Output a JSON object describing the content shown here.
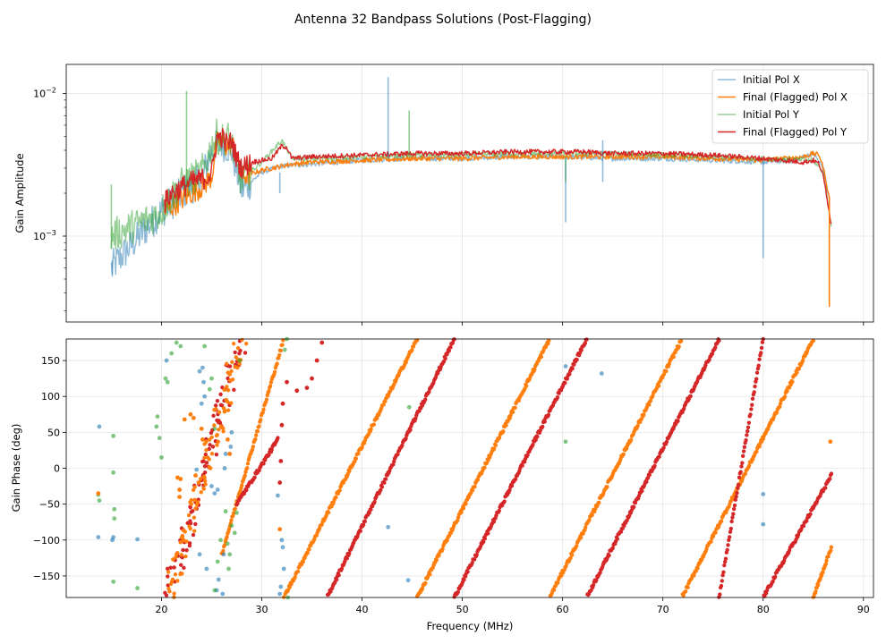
{
  "chart_data": {
    "type": "line",
    "title": "Antenna 32 Bandpass Solutions (Post-Flagging)",
    "x_axis": {
      "label": "Frequency (MHz)",
      "range": [
        10.5,
        91
      ],
      "ticks": [
        20,
        30,
        40,
        50,
        60,
        70,
        80,
        90
      ]
    },
    "panels": [
      {
        "id": "amplitude",
        "ylabel": "Gain Amplitude",
        "yscale": "log",
        "ylim": [
          0.00025,
          0.016
        ],
        "y_ticks": [
          {
            "value": 0.001,
            "label": "10",
            "exp": "−3"
          },
          {
            "value": 0.01,
            "label": "10",
            "exp": "−2"
          }
        ],
        "grid": true,
        "legend_position": "top-right",
        "series": [
          {
            "name": "Initial Pol X",
            "color": "#1f77b4",
            "alpha": 0.5,
            "x": [
              15.0,
              20.0,
              21.0,
              22.0,
              23.0,
              24.0,
              25.0,
              26.0,
              27.0,
              28.0,
              30.0,
              32.0,
              35.0,
              40.0,
              45.0,
              50.0,
              55.0,
              60.0,
              65.0,
              70.0,
              75.0,
              80.0,
              83.0,
              85.0,
              86.0,
              86.6
            ],
            "y": [
              0.0006,
              0.0015,
              0.0017,
              0.002,
              0.0022,
              0.0025,
              0.004,
              0.0045,
              0.004,
              0.0021,
              0.0028,
              0.0031,
              0.0032,
              0.0034,
              0.0035,
              0.0035,
              0.0036,
              0.0036,
              0.0035,
              0.0035,
              0.0034,
              0.0033,
              0.0034,
              0.0038,
              0.003,
              0.0018
            ]
          },
          {
            "name": "Final (Flagged) Pol X",
            "color": "#ff7f0e",
            "alpha": 1,
            "x": [
              20.3,
              21.0,
              22.0,
              23.0,
              24.0,
              25.0,
              25.5,
              26.0,
              26.5,
              27.0,
              27.5,
              28.0,
              30.0,
              32.0,
              33.0,
              35.0,
              40.0,
              45.0,
              50.0,
              55.0,
              60.0,
              65.0,
              70.0,
              75.0,
              80.0,
              82.0,
              84.0,
              85.0,
              85.6,
              86.0,
              86.3,
              86.6
            ],
            "y": [
              0.0015,
              0.0016,
              0.0018,
              0.002,
              0.0022,
              0.0026,
              0.0045,
              0.0048,
              0.0042,
              0.0046,
              0.0035,
              0.0026,
              0.0029,
              0.0031,
              0.0032,
              0.0033,
              0.0034,
              0.0035,
              0.0035,
              0.0036,
              0.0036,
              0.0036,
              0.0036,
              0.0035,
              0.0034,
              0.0035,
              0.0036,
              0.0038,
              0.0037,
              0.003,
              0.0024,
              0.0018
            ]
          },
          {
            "name": "Initial Pol Y",
            "color": "#2ca02c",
            "alpha": 0.5,
            "x": [
              15.0,
              19.5,
              20.0,
              21.0,
              22.0,
              23.0,
              24.0,
              25.0,
              25.5,
              26.0,
              26.5,
              27.0,
              27.5,
              28.0,
              30.0,
              32.0,
              33.0,
              35.0,
              40.0,
              45.0,
              50.0,
              55.0,
              60.0,
              65.0,
              70.0,
              75.0,
              80.0,
              85.0,
              86.0,
              86.8
            ],
            "y": [
              0.001,
              0.0014,
              0.0015,
              0.0019,
              0.0023,
              0.0025,
              0.0028,
              0.0042,
              0.005,
              0.0047,
              0.005,
              0.0045,
              0.0028,
              0.0025,
              0.0033,
              0.0047,
              0.0035,
              0.0035,
              0.0036,
              0.0037,
              0.0037,
              0.0038,
              0.0038,
              0.0038,
              0.0037,
              0.0036,
              0.0035,
              0.0034,
              0.0028,
              0.0012
            ]
          },
          {
            "name": "Final (Flagged) Pol Y",
            "color": "#d62728",
            "alpha": 1,
            "x": [
              20.3,
              21.0,
              22.0,
              23.0,
              24.0,
              25.0,
              25.5,
              26.0,
              26.5,
              27.0,
              27.5,
              28.0,
              29.0,
              30.0,
              31.0,
              32.0,
              32.5,
              33.0,
              35.0,
              40.0,
              45.0,
              50.0,
              55.0,
              60.0,
              62.0,
              65.0,
              70.0,
              75.0,
              80.0,
              82.0,
              84.0,
              85.0,
              85.6,
              86.0,
              86.3,
              86.8
            ],
            "y": [
              0.0017,
              0.002,
              0.0022,
              0.0024,
              0.0025,
              0.0027,
              0.0048,
              0.005,
              0.0044,
              0.0046,
              0.0035,
              0.003,
              0.0033,
              0.0034,
              0.0035,
              0.0043,
              0.0042,
              0.0035,
              0.0036,
              0.0037,
              0.0038,
              0.0038,
              0.0039,
              0.0039,
              0.0039,
              0.0038,
              0.0038,
              0.0037,
              0.0035,
              0.0034,
              0.0033,
              0.0034,
              0.0032,
              0.0026,
              0.002,
              0.0012
            ]
          }
        ],
        "spikes": [
          {
            "series": "Initial Pol X",
            "x": 15.1,
            "y_low": 0.00052,
            "y_high": 0.00068
          },
          {
            "series": "Initial Pol Y",
            "x": 15.0,
            "y_low": 0.00082,
            "y_high": 0.0023
          },
          {
            "series": "Initial Pol Y",
            "x": 22.5,
            "y_low": 0.0022,
            "y_high": 0.0104
          },
          {
            "series": "Initial Pol X",
            "x": 31.8,
            "y_low": 0.002,
            "y_high": 0.0028
          },
          {
            "series": "Initial Pol X",
            "x": 42.6,
            "y_low": 0.0035,
            "y_high": 0.013
          },
          {
            "series": "Initial Pol Y",
            "x": 44.7,
            "y_low": 0.0036,
            "y_high": 0.0076
          },
          {
            "series": "Initial Pol X",
            "x": 60.3,
            "y_low": 0.00125,
            "y_high": 0.0035
          },
          {
            "series": "Initial Pol Y",
            "x": 60.3,
            "y_low": 0.0024,
            "y_high": 0.0036
          },
          {
            "series": "Initial Pol X",
            "x": 64.0,
            "y_low": 0.0024,
            "y_high": 0.0047
          },
          {
            "series": "Initial Pol X",
            "x": 80.0,
            "y_low": 0.0007,
            "y_high": 0.0034
          },
          {
            "series": "Final (Flagged) Pol X",
            "x": 86.6,
            "y_low": 0.00032,
            "y_high": 0.0019
          }
        ]
      },
      {
        "id": "phase",
        "ylabel": "Gain Phase (deg)",
        "yscale": "linear",
        "ylim": [
          -180,
          180
        ],
        "y_ticks": [
          -150,
          -100,
          -50,
          0,
          50,
          100,
          150
        ],
        "grid": true,
        "type": "scatter",
        "phase_wraps": [
          {
            "series": "Final (Flagged) Pol Y",
            "color": "#d62728",
            "alpha": 1,
            "segments": [
              [
                20.6,
                28.0,
                -180,
                180
              ]
            ]
          },
          {
            "series": "Final (Flagged) Pol X",
            "color": "#ff7f0e",
            "alpha": 1,
            "segments": [
              [
                20.6,
                28.0,
                -180,
                180
              ]
            ]
          },
          {
            "series": "Final (Flagged) Pol X",
            "color": "#ff7f0e",
            "alpha": 1,
            "segments": [
              [
                26.0,
                32.2,
                -120,
                180
              ],
              [
                32.2,
                45.5,
                -180,
                180
              ],
              [
                45.5,
                58.7,
                -180,
                180
              ],
              [
                58.7,
                71.9,
                -180,
                180
              ],
              [
                71.9,
                85.0,
                -180,
                180
              ],
              [
                85.0,
                86.8,
                -180,
                -110
              ]
            ]
          },
          {
            "series": "Final (Flagged) Pol Y",
            "color": "#d62728",
            "alpha": 1,
            "segments": [
              [
                27.5,
                31.6,
                -50,
                40
              ],
              [
                36.5,
                49.2,
                -180,
                180
              ],
              [
                49.2,
                62.4,
                -180,
                180
              ],
              [
                62.4,
                75.6,
                -180,
                180
              ],
              [
                75.6,
                80.0,
                -180,
                180
              ],
              [
                80.0,
                86.8,
                -180,
                -10
              ]
            ]
          }
        ],
        "scatter_points": [
          {
            "series": "Final (Flagged) Pol Y",
            "color": "#d62728",
            "alpha": 1,
            "points": [
              [
                32.5,
                120
              ],
              [
                33.5,
                108
              ],
              [
                34.5,
                112
              ],
              [
                35.0,
                125
              ],
              [
                35.5,
                150
              ],
              [
                36.0,
                175
              ],
              [
                31.8,
                -20
              ],
              [
                31.9,
                10
              ],
              [
                32.0,
                60
              ],
              [
                32.1,
                90
              ]
            ]
          },
          {
            "series": "Initial Pol X",
            "color": "#1f77b4",
            "alpha": 0.6,
            "points": [
              [
                13.8,
                58
              ],
              [
                13.7,
                -96
              ],
              [
                15.2,
                -96
              ],
              [
                15.1,
                -100
              ],
              [
                17.6,
                -99
              ],
              [
                24.1,
                140
              ],
              [
                23.8,
                135
              ],
              [
                24.2,
                120
              ],
              [
                23.5,
                -2
              ],
              [
                24.0,
                90
              ],
              [
                24.3,
                100
              ],
              [
                25.3,
                -35
              ],
              [
                25.0,
                -25
              ],
              [
                25.6,
                -30
              ],
              [
                26.3,
                0
              ],
              [
                26.9,
                30
              ],
              [
                27.0,
                50
              ],
              [
                26.4,
                20
              ],
              [
                25.5,
                -170
              ],
              [
                25.7,
                -155
              ],
              [
                26.1,
                -175
              ],
              [
                26.2,
                -120
              ],
              [
                31.6,
                -38
              ],
              [
                31.8,
                -175
              ],
              [
                32.0,
                -100
              ],
              [
                32.1,
                -110
              ],
              [
                32.2,
                -140
              ],
              [
                31.9,
                -165
              ],
              [
                42.6,
                -82
              ],
              [
                44.6,
                -156
              ],
              [
                60.3,
                142
              ],
              [
                63.9,
                132
              ],
              [
                80.0,
                -36
              ],
              [
                80.0,
                -78
              ],
              [
                20.5,
                150
              ],
              [
                24.5,
                -140
              ],
              [
                23.8,
                -120
              ]
            ]
          },
          {
            "series": "Initial Pol Y",
            "color": "#2ca02c",
            "alpha": 0.6,
            "points": [
              [
                13.8,
                -45
              ],
              [
                13.7,
                -37
              ],
              [
                15.2,
                45
              ],
              [
                15.2,
                -6
              ],
              [
                15.3,
                -57
              ],
              [
                15.3,
                -70
              ],
              [
                15.2,
                -158
              ],
              [
                17.6,
                -167
              ],
              [
                19.6,
                72
              ],
              [
                19.5,
                58
              ],
              [
                19.8,
                42
              ],
              [
                20.0,
                15
              ],
              [
                20.4,
                125
              ],
              [
                20.6,
                120
              ],
              [
                21.9,
                170
              ],
              [
                21.5,
                175
              ],
              [
                24.3,
                170
              ],
              [
                24.8,
                110
              ],
              [
                25.0,
                125
              ],
              [
                25.3,
                55
              ],
              [
                26.4,
                -60
              ],
              [
                26.6,
                -105
              ],
              [
                26.8,
                -120
              ],
              [
                27.0,
                -80
              ],
              [
                27.3,
                -90
              ],
              [
                27.5,
                -62
              ],
              [
                27.8,
                150
              ],
              [
                32.3,
                165
              ],
              [
                32.5,
                180
              ],
              [
                32.6,
                -180
              ],
              [
                44.7,
                85
              ],
              [
                60.3,
                37
              ],
              [
                21.0,
                160
              ],
              [
                25.6,
                -130
              ],
              [
                25.9,
                -100
              ],
              [
                25.3,
                -170
              ],
              [
                26.7,
                -140
              ]
            ]
          },
          {
            "series": "Final (Flagged) Pol X",
            "color": "#ff7f0e",
            "alpha": 1,
            "points": [
              [
                13.7,
                -35
              ],
              [
                21.9,
                -15
              ],
              [
                21.6,
                -13
              ],
              [
                22.3,
                68
              ],
              [
                22.9,
                75
              ],
              [
                23.2,
                70
              ],
              [
                24.0,
                55
              ],
              [
                24.1,
                40
              ],
              [
                23.4,
                -10
              ],
              [
                23.7,
                -20
              ],
              [
                21.8,
                -30
              ],
              [
                21.8,
                -40
              ],
              [
                26.6,
                40
              ],
              [
                26.8,
                20
              ],
              [
                31.8,
                -85
              ],
              [
                86.7,
                37
              ]
            ]
          }
        ]
      }
    ]
  }
}
